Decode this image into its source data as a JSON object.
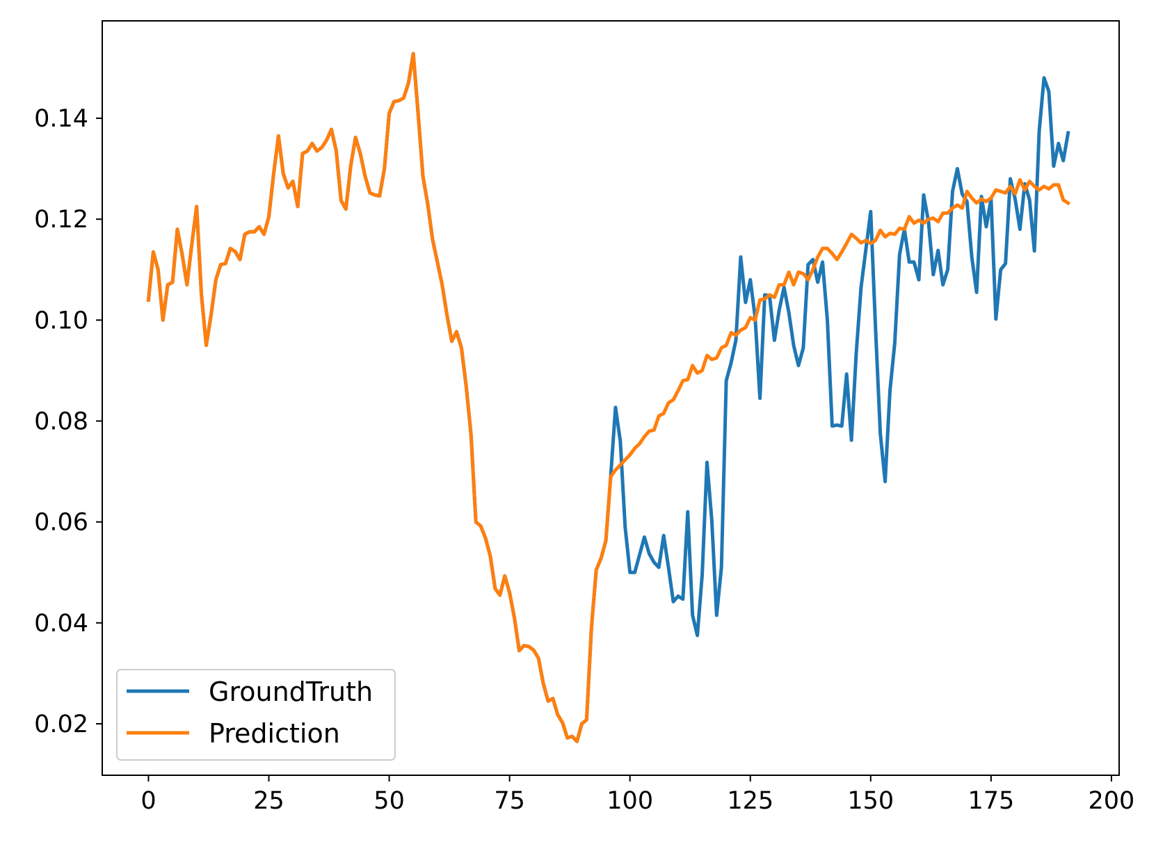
{
  "chart_data": {
    "type": "line",
    "title": "",
    "xlabel": "",
    "ylabel": "",
    "xlim": [
      -9.6,
      201.6
    ],
    "ylim": [
      0.0098,
      0.1593
    ],
    "grid": false,
    "legend_position": "bottom-left",
    "x_ticks": [
      0,
      25,
      50,
      75,
      100,
      125,
      150,
      175,
      200
    ],
    "x_tick_labels": [
      "0",
      "25",
      "50",
      "75",
      "100",
      "125",
      "150",
      "175",
      "200"
    ],
    "y_ticks": [
      0.02,
      0.04,
      0.06,
      0.08,
      0.1,
      0.12,
      0.14
    ],
    "y_tick_labels": [
      "0.02",
      "0.04",
      "0.06",
      "0.08",
      "0.10",
      "0.12",
      "0.14"
    ],
    "series": [
      {
        "name": "GroundTruth",
        "color": "#1f77b4",
        "x_start": 0,
        "values": [
          0.104,
          0.1135,
          0.11,
          0.1,
          0.107,
          0.1075,
          0.118,
          0.113,
          0.107,
          0.115,
          0.1225,
          0.105,
          0.095,
          0.101,
          0.108,
          0.111,
          0.1112,
          0.1142,
          0.1136,
          0.112,
          0.117,
          0.1175,
          0.1175,
          0.1185,
          0.117,
          0.1205,
          0.129,
          0.1365,
          0.129,
          0.1262,
          0.1275,
          0.1225,
          0.133,
          0.1335,
          0.135,
          0.1335,
          0.1342,
          0.1357,
          0.1378,
          0.1335,
          0.1237,
          0.122,
          0.1305,
          0.1362,
          0.133,
          0.1285,
          0.1252,
          0.1248,
          0.1246,
          0.13,
          0.141,
          0.1433,
          0.1435,
          0.144,
          0.147,
          0.1528,
          0.141,
          0.1285,
          0.123,
          0.116,
          0.1115,
          0.107,
          0.101,
          0.0958,
          0.0977,
          0.0945,
          0.0868,
          0.0772,
          0.06,
          0.0592,
          0.0568,
          0.0532,
          0.0468,
          0.0455,
          0.0493,
          0.046,
          0.041,
          0.0345,
          0.0355,
          0.0353,
          0.0346,
          0.033,
          0.028,
          0.0245,
          0.025,
          0.0218,
          0.0202,
          0.0172,
          0.0175,
          0.0165,
          0.02,
          0.0208,
          0.039,
          0.0505,
          0.0528,
          0.0563,
          0.069,
          0.0827,
          0.076,
          0.059,
          0.05,
          0.05,
          0.0535,
          0.057,
          0.0537,
          0.052,
          0.051,
          0.0573,
          0.051,
          0.0442,
          0.0453,
          0.0447,
          0.062,
          0.0415,
          0.0375,
          0.0495,
          0.0718,
          0.0603,
          0.0415,
          0.051,
          0.088,
          0.0915,
          0.096,
          0.1125,
          0.1035,
          0.108,
          0.1005,
          0.0845,
          0.105,
          0.1048,
          0.096,
          0.102,
          0.1065,
          0.1015,
          0.095,
          0.091,
          0.0945,
          0.111,
          0.112,
          0.1075,
          0.1115,
          0.1,
          0.079,
          0.0792,
          0.079,
          0.0893,
          0.0762,
          0.0935,
          0.1065,
          0.114,
          0.1215,
          0.0985,
          0.0775,
          0.068,
          0.086,
          0.0955,
          0.113,
          0.118,
          0.1115,
          0.1115,
          0.108,
          0.1248,
          0.1195,
          0.109,
          0.1138,
          0.107,
          0.11,
          0.1255,
          0.13,
          0.125,
          0.1235,
          0.1125,
          0.1055,
          0.1245,
          0.1185,
          0.124,
          0.1002,
          0.11,
          0.1112,
          0.128,
          0.124,
          0.118,
          0.127,
          0.1238,
          0.1137,
          0.1375,
          0.148,
          0.1453,
          0.1305,
          0.135,
          0.1316,
          0.1371
        ]
      },
      {
        "name": "Prediction",
        "color": "#ff7f0e",
        "x_start": 0,
        "values": [
          0.104,
          0.1135,
          0.11,
          0.1,
          0.107,
          0.1075,
          0.118,
          0.113,
          0.107,
          0.115,
          0.1225,
          0.105,
          0.095,
          0.101,
          0.108,
          0.111,
          0.1112,
          0.1142,
          0.1136,
          0.112,
          0.117,
          0.1175,
          0.1175,
          0.1185,
          0.117,
          0.1205,
          0.129,
          0.1365,
          0.129,
          0.1262,
          0.1275,
          0.1225,
          0.133,
          0.1335,
          0.135,
          0.1335,
          0.1342,
          0.1357,
          0.1378,
          0.1335,
          0.1237,
          0.122,
          0.1305,
          0.1362,
          0.133,
          0.1285,
          0.1252,
          0.1248,
          0.1246,
          0.13,
          0.141,
          0.1433,
          0.1435,
          0.144,
          0.147,
          0.1528,
          0.141,
          0.1285,
          0.123,
          0.116,
          0.1115,
          0.107,
          0.101,
          0.0958,
          0.0977,
          0.0945,
          0.0868,
          0.0772,
          0.06,
          0.0592,
          0.0568,
          0.0532,
          0.0468,
          0.0455,
          0.0493,
          0.046,
          0.041,
          0.0345,
          0.0355,
          0.0353,
          0.0346,
          0.033,
          0.028,
          0.0245,
          0.025,
          0.0218,
          0.0202,
          0.0172,
          0.0175,
          0.0165,
          0.02,
          0.0208,
          0.039,
          0.0505,
          0.0528,
          0.0563,
          0.069,
          0.0703,
          0.0713,
          0.0723,
          0.0733,
          0.0746,
          0.0755,
          0.0769,
          0.078,
          0.0782,
          0.081,
          0.0815,
          0.0836,
          0.0842,
          0.086,
          0.088,
          0.0882,
          0.091,
          0.0895,
          0.09,
          0.093,
          0.0922,
          0.0925,
          0.0945,
          0.095,
          0.0975,
          0.097,
          0.098,
          0.0985,
          0.1005,
          0.1,
          0.104,
          0.1042,
          0.105,
          0.1045,
          0.107,
          0.107,
          0.1095,
          0.107,
          0.1095,
          0.1092,
          0.108,
          0.11,
          0.1125,
          0.1142,
          0.1142,
          0.1132,
          0.112,
          0.1135,
          0.1152,
          0.117,
          0.1162,
          0.1153,
          0.1158,
          0.1152,
          0.1158,
          0.1178,
          0.1165,
          0.1172,
          0.117,
          0.1182,
          0.118,
          0.1205,
          0.1192,
          0.1198,
          0.1192,
          0.12,
          0.1202,
          0.1195,
          0.1212,
          0.1212,
          0.1222,
          0.1228,
          0.1222,
          0.1255,
          0.1242,
          0.1232,
          0.124,
          0.1235,
          0.1242,
          0.1258,
          0.1255,
          0.1252,
          0.1265,
          0.125,
          0.1278,
          0.1258,
          0.1275,
          0.1265,
          0.1258,
          0.1265,
          0.126,
          0.1268,
          0.1268,
          0.1238,
          0.1232
        ]
      }
    ]
  }
}
